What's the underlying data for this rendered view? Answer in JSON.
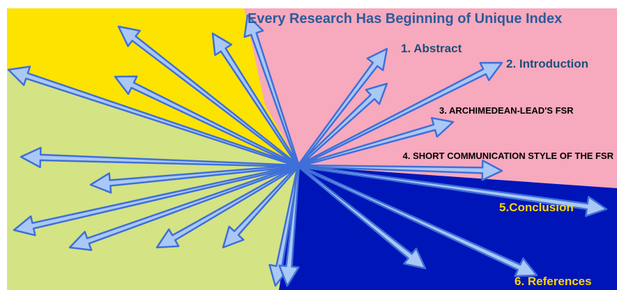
{
  "title": "Every Research Has Beginning of Unique Index",
  "items": [
    "1. Abstract",
    "2. Introduction",
    "3. ARCHIMEDEAN-LEAD'S FSR",
    "4. SHORT COMMUNICATION STYLE OF THE FSR",
    "5.Conclusion",
    "6. References"
  ]
}
